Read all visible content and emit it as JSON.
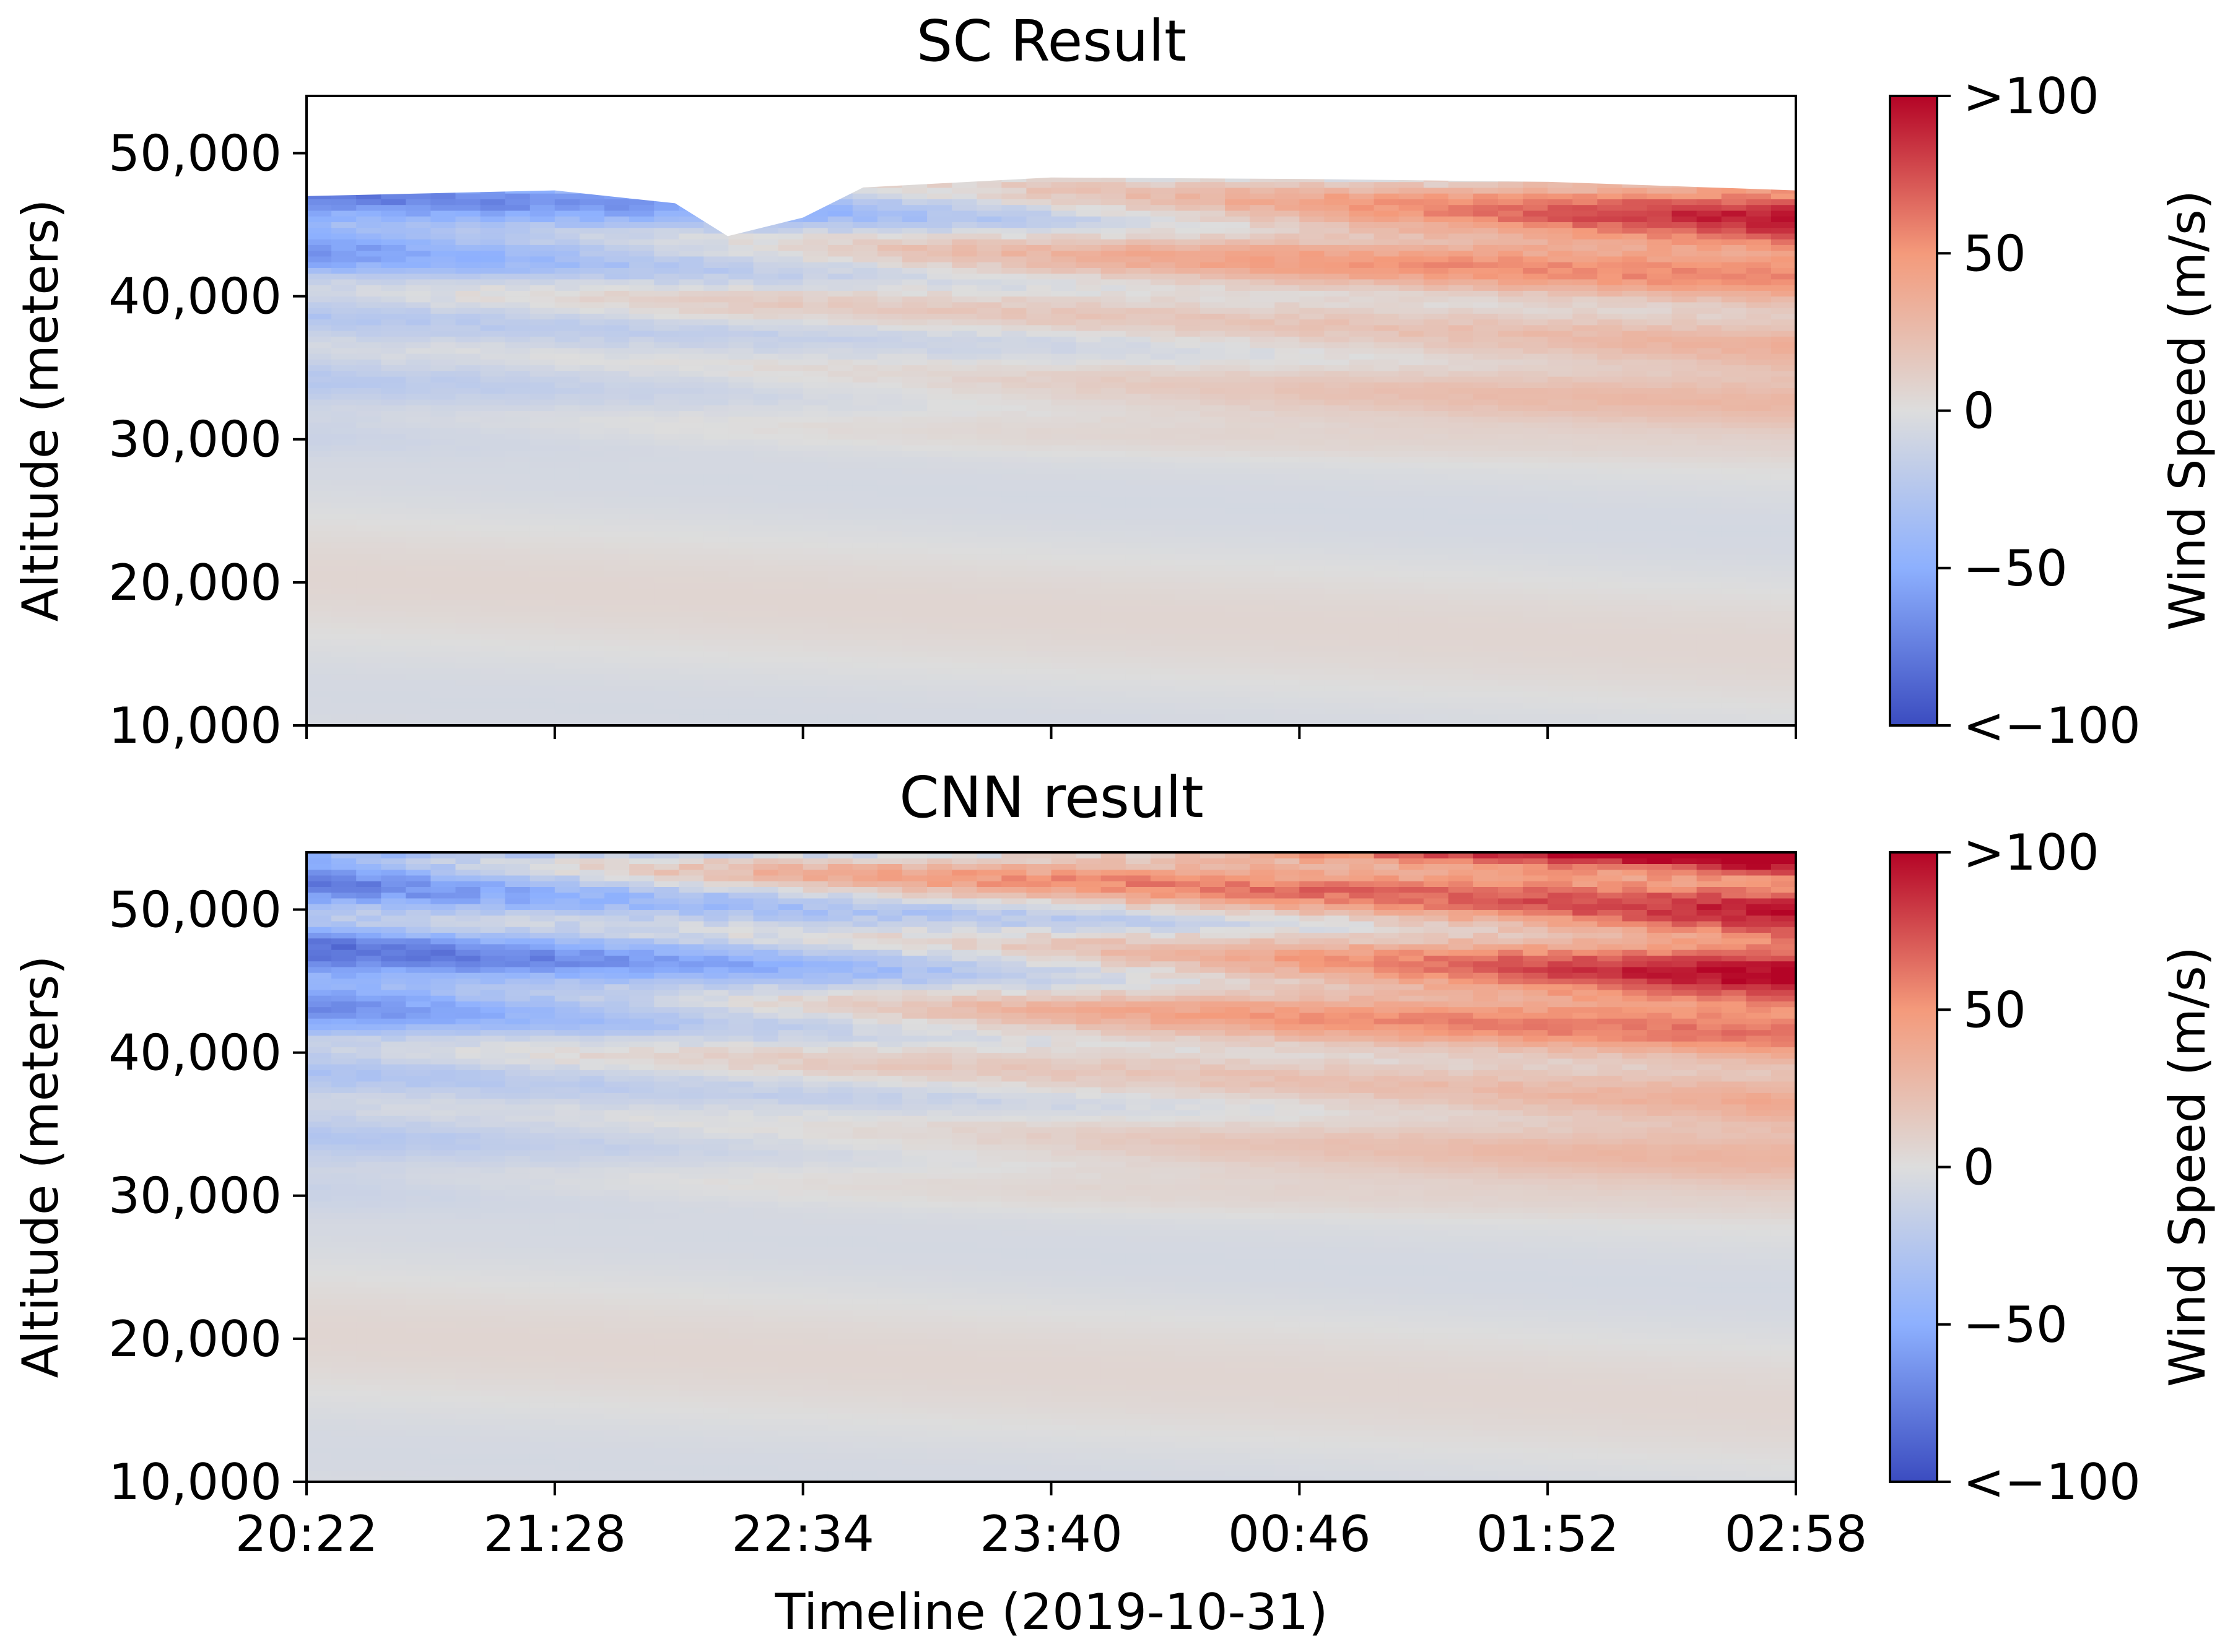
{
  "chart_data": [
    {
      "type": "heatmap",
      "title": "SC Result",
      "ylabel": "Altitude (meters)",
      "xlabel": "",
      "ylim": [
        10000,
        54000
      ],
      "y_ticks": [
        "10,000",
        "20,000",
        "30,000",
        "40,000",
        "50,000"
      ],
      "y_tick_values": [
        10000,
        20000,
        30000,
        40000,
        50000
      ],
      "x_ticks": [
        "20:22",
        "21:28",
        "22:34",
        "23:40",
        "00:46",
        "01:52",
        "02:58"
      ],
      "x_tick_labels_visible": false,
      "colorbar": {
        "label": "Wind Speed (m/s)",
        "range": [
          -100,
          100
        ],
        "tick_values": [
          -100,
          -50,
          0,
          50,
          100
        ],
        "tick_labels": [
          "<−100",
          "−50",
          "0",
          "50",
          ">100"
        ],
        "colormap": [
          "#3b4cc0",
          "#8db0fe",
          "#dddddd",
          "#f49a7b",
          "#b40426"
        ]
      },
      "data_top_altitude_profile": [
        {
          "time": "20:22",
          "altitude": 47000
        },
        {
          "time": "21:28",
          "altitude": 47400
        },
        {
          "time": "22:00",
          "altitude": 46500
        },
        {
          "time": "22:14",
          "altitude": 44200
        },
        {
          "time": "22:34",
          "altitude": 45500
        },
        {
          "time": "22:50",
          "altitude": 47600
        },
        {
          "time": "23:40",
          "altitude": 48300
        },
        {
          "time": "00:46",
          "altitude": 48200
        },
        {
          "time": "01:52",
          "altitude": 48000
        },
        {
          "time": "02:58",
          "altitude": 47400
        }
      ]
    },
    {
      "type": "heatmap",
      "title": "CNN result",
      "ylabel": "Altitude (meters)",
      "xlabel": "Timeline (2019-10-31)",
      "ylim": [
        10000,
        54000
      ],
      "y_ticks": [
        "10,000",
        "20,000",
        "30,000",
        "40,000",
        "50,000"
      ],
      "y_tick_values": [
        10000,
        20000,
        30000,
        40000,
        50000
      ],
      "x_ticks": [
        "20:22",
        "21:28",
        "22:34",
        "23:40",
        "00:46",
        "01:52",
        "02:58"
      ],
      "x_tick_labels_visible": true,
      "colorbar": {
        "label": "Wind Speed (m/s)",
        "range": [
          -100,
          100
        ],
        "tick_values": [
          -100,
          -50,
          0,
          50,
          100
        ],
        "tick_labels": [
          "<−100",
          "−50",
          "0",
          "50",
          ">100"
        ],
        "colormap": [
          "#3b4cc0",
          "#8db0fe",
          "#dddddd",
          "#f49a7b",
          "#b40426"
        ]
      }
    }
  ]
}
